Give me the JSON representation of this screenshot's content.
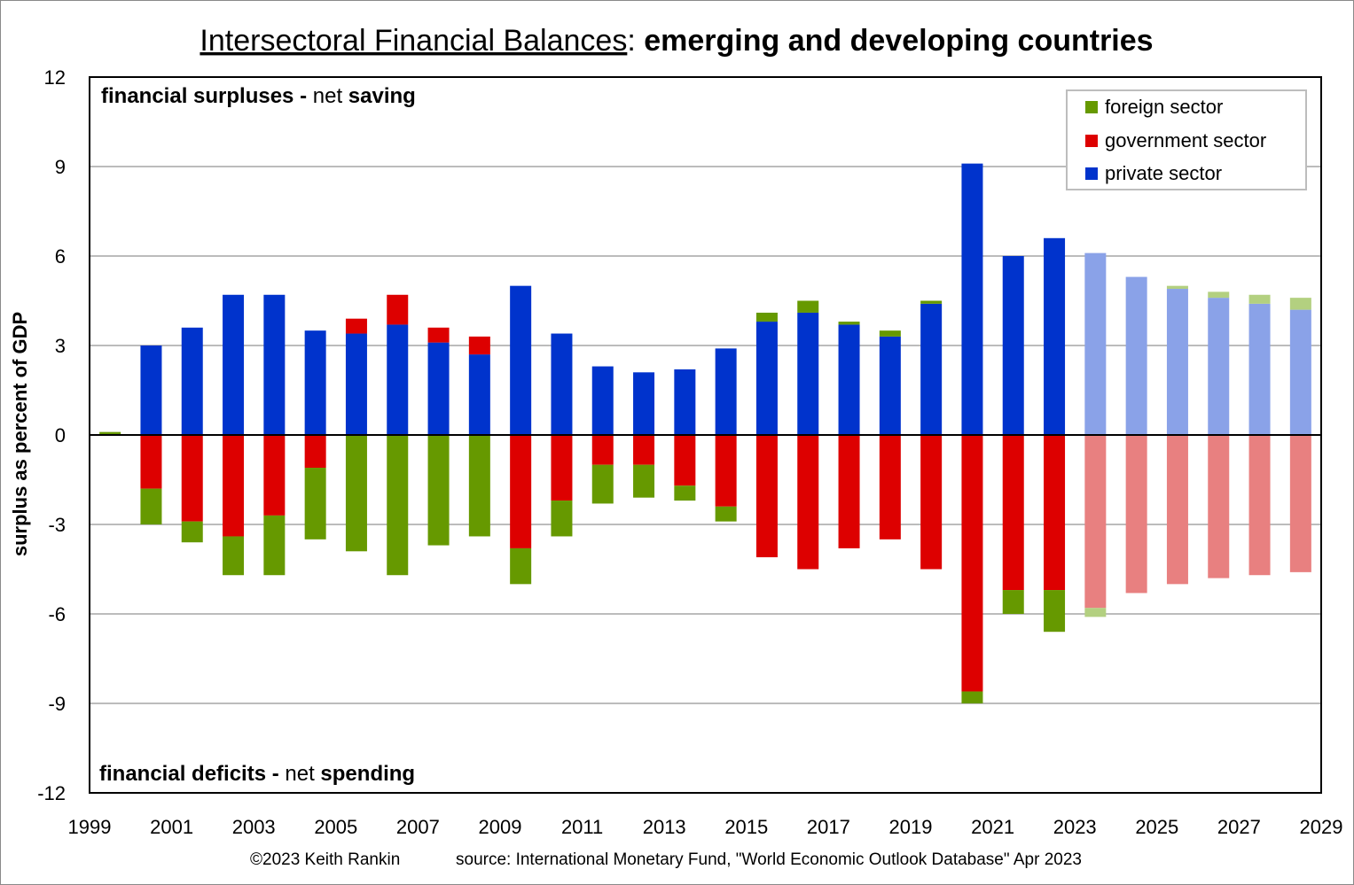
{
  "title": {
    "underlined": "Intersectoral Financial Balances",
    "separator": ": ",
    "bold": "emerging and developing countries"
  },
  "annotations": {
    "top_bold": "financial surpluses -",
    "top_normal": " net ",
    "top_bold2": "saving",
    "bottom_bold": "financial deficits -",
    "bottom_normal": " net ",
    "bottom_bold2": "spending"
  },
  "footer": {
    "copyright": "©2023 Keith Rankin",
    "source": "source:  International Monetary Fund, \"World Economic Outlook Database\" Apr 2023"
  },
  "chart_data": {
    "type": "bar",
    "stacked": true,
    "ylabel": "surplus as percent of GDP",
    "xlabel": "",
    "ylim": [
      -12,
      12
    ],
    "yticks": [
      12,
      9,
      6,
      3,
      0,
      -3,
      -6,
      -9,
      -12
    ],
    "xlim": [
      1999,
      2029
    ],
    "xticks": [
      1999,
      2001,
      2003,
      2005,
      2007,
      2009,
      2011,
      2013,
      2015,
      2017,
      2019,
      2021,
      2023,
      2025,
      2027,
      2029
    ],
    "grid": "horizontal",
    "legend_position": "top-right",
    "forecast_from": 2023,
    "x": [
      1999,
      2000,
      2001,
      2002,
      2003,
      2004,
      2005,
      2006,
      2007,
      2008,
      2009,
      2010,
      2011,
      2012,
      2013,
      2014,
      2015,
      2016,
      2017,
      2018,
      2019,
      2020,
      2021,
      2022,
      2023,
      2024,
      2025,
      2026,
      2027,
      2028
    ],
    "series": [
      {
        "name": "foreign sector",
        "color": "#669900",
        "forecast_color": "#b3d080",
        "values": [
          0.1,
          -1.2,
          -0.7,
          -1.3,
          -2.0,
          -2.4,
          -3.9,
          -4.7,
          -3.7,
          -3.4,
          -1.2,
          -1.2,
          -1.3,
          -1.1,
          -0.5,
          -0.5,
          0.3,
          0.4,
          0.1,
          0.2,
          0.1,
          -0.4,
          -0.8,
          -1.4,
          -0.3,
          0.0,
          0.1,
          0.2,
          0.3,
          0.4
        ]
      },
      {
        "name": "government sector",
        "color": "#dd0000",
        "forecast_color": "#e88080",
        "values": [
          0.0,
          -1.8,
          -2.9,
          -3.4,
          -2.7,
          -1.1,
          0.5,
          1.0,
          0.5,
          0.6,
          -3.8,
          -2.2,
          -1.0,
          -1.0,
          -1.7,
          -2.4,
          -4.1,
          -4.5,
          -3.8,
          -3.5,
          -4.5,
          -8.6,
          -5.2,
          -5.2,
          -5.8,
          -5.3,
          -5.0,
          -4.8,
          -4.7,
          -4.6
        ]
      },
      {
        "name": "private sector",
        "color": "#0033cc",
        "forecast_color": "#8aa2e8",
        "values": [
          0.0,
          3.0,
          3.6,
          4.7,
          4.7,
          3.5,
          3.4,
          3.7,
          3.1,
          2.7,
          5.0,
          3.4,
          2.3,
          2.1,
          2.2,
          2.9,
          3.8,
          4.1,
          3.7,
          3.3,
          4.4,
          9.1,
          6.0,
          6.6,
          6.1,
          5.3,
          4.9,
          4.6,
          4.4,
          4.2
        ]
      }
    ],
    "legend_order": [
      "foreign sector",
      "government sector",
      "private sector"
    ]
  }
}
